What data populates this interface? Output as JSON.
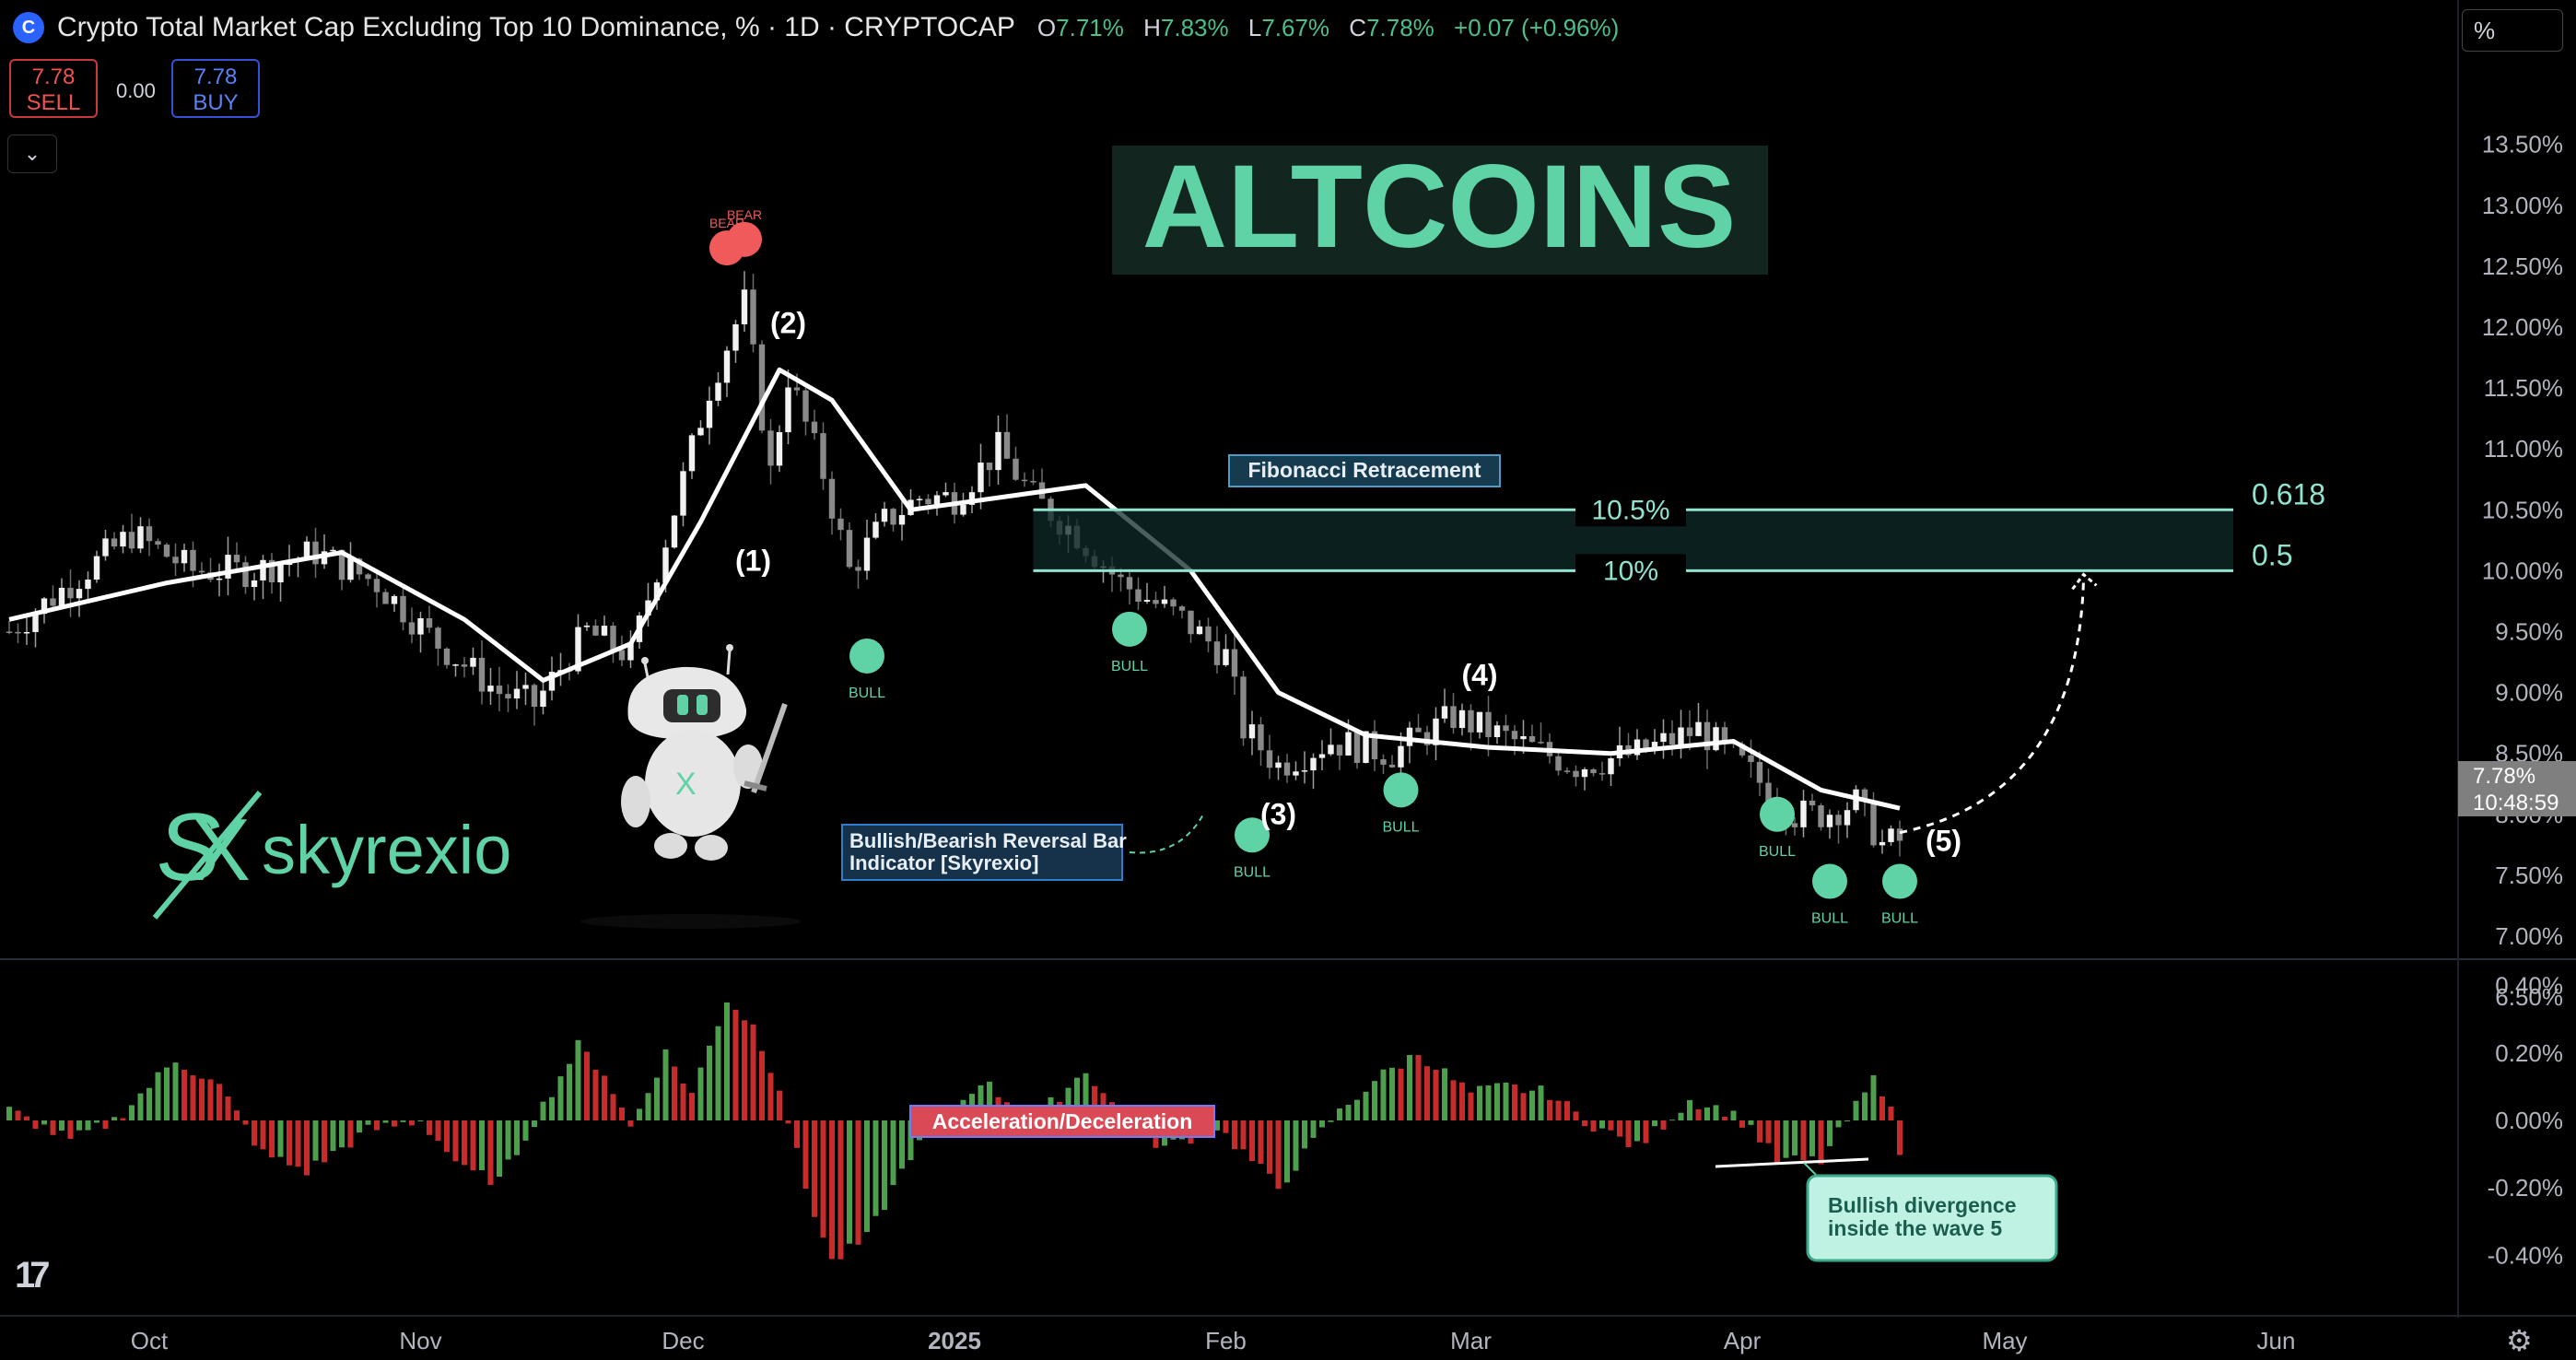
{
  "header": {
    "logo_glyph": "C",
    "title": "Crypto Total Market Cap Excluding Top 10 Dominance, % · 1D · CRYPTOCAP",
    "ohlc": [
      {
        "label": "O",
        "value": "7.71%"
      },
      {
        "label": "H",
        "value": "7.83%"
      },
      {
        "label": "L",
        "value": "7.67%"
      },
      {
        "label": "C",
        "value": "7.78%"
      }
    ],
    "change": "+0.07 (+0.96%)"
  },
  "trade": {
    "sell_price": "7.78",
    "sell_label": "SELL",
    "spread": "0.00",
    "buy_price": "7.78",
    "buy_label": "BUY"
  },
  "scale_button": "%",
  "collapse_icon": "chevron-down-icon",
  "tradingview_logo": "17",
  "settings_icon": "gear-icon",
  "colors": {
    "up": "#4d9e4d",
    "down": "#c72c2c",
    "price_line": "#ffffff",
    "accent": "#5fd3a5",
    "bull_dot": "#5fd3a5",
    "bear_dot": "#f05a5a",
    "fib_line": "#8fe3cf"
  },
  "annotations": {
    "altcoins_title": "ALTCOINS",
    "brand": "skyrexio",
    "wave_labels": [
      "(1)",
      "(2)",
      "(3)",
      "(4)",
      "(5)"
    ],
    "bull": "BULL",
    "bear": "BEAR",
    "fib_title": "Fibonacci Retracement",
    "fib_upper_pct": "10.5%",
    "fib_lower_pct": "10%",
    "fib_upper_ratio": "0.618",
    "fib_lower_ratio": "0.5",
    "indicator_note": "Bullish/Bearish Reversal Bar Indicator [Skyrexio]",
    "accel_label": "Acceleration/Deceleration",
    "divergence_note": "Bullish divergence inside the wave 5",
    "last_price": "7.78%",
    "countdown": "10:48:59"
  },
  "chart_data": [
    {
      "type": "candlestick",
      "title": "Crypto Total Market Cap Excluding Top 10 Dominance, %",
      "x_tick_labels": [
        "Oct",
        "Nov",
        "Dec",
        "2025",
        "Feb",
        "Mar",
        "Apr",
        "May",
        "Jun"
      ],
      "y_tick_labels": [
        "13.50%",
        "13.00%",
        "12.50%",
        "12.00%",
        "11.50%",
        "11.00%",
        "10.50%",
        "10.00%",
        "9.50%",
        "9.00%",
        "8.50%",
        "8.00%",
        "7.50%",
        "7.00%",
        "6.50%"
      ],
      "ylim": [
        6.4,
        13.6
      ],
      "close_anchors": [
        {
          "date": "2024-09-15",
          "value": 9.5
        },
        {
          "date": "2024-09-22",
          "value": 9.9
        },
        {
          "date": "2024-09-29",
          "value": 10.3
        },
        {
          "date": "2024-10-06",
          "value": 10.0
        },
        {
          "date": "2024-10-13",
          "value": 10.0
        },
        {
          "date": "2024-10-20",
          "value": 10.15
        },
        {
          "date": "2024-10-27",
          "value": 9.9
        },
        {
          "date": "2024-11-03",
          "value": 9.4
        },
        {
          "date": "2024-11-10",
          "value": 9.0
        },
        {
          "date": "2024-11-14",
          "value": 8.9
        },
        {
          "date": "2024-11-20",
          "value": 9.5
        },
        {
          "date": "2024-11-25",
          "value": 9.3
        },
        {
          "date": "2024-11-30",
          "value": 10.5
        },
        {
          "date": "2024-12-04",
          "value": 11.5
        },
        {
          "date": "2024-12-08",
          "value": 12.2
        },
        {
          "date": "2024-12-11",
          "value": 10.8
        },
        {
          "date": "2024-12-13",
          "value": 11.6
        },
        {
          "date": "2024-12-17",
          "value": 10.8
        },
        {
          "date": "2024-12-20",
          "value": 10.0
        },
        {
          "date": "2024-12-24",
          "value": 10.4
        },
        {
          "date": "2024-12-28",
          "value": 10.6
        },
        {
          "date": "2025-01-01",
          "value": 10.6
        },
        {
          "date": "2025-01-06",
          "value": 11.0
        },
        {
          "date": "2025-01-10",
          "value": 10.6
        },
        {
          "date": "2025-01-15",
          "value": 10.3
        },
        {
          "date": "2025-01-20",
          "value": 9.9
        },
        {
          "date": "2025-01-27",
          "value": 9.6
        },
        {
          "date": "2025-02-01",
          "value": 9.3
        },
        {
          "date": "2025-02-03",
          "value": 8.7
        },
        {
          "date": "2025-02-07",
          "value": 8.4
        },
        {
          "date": "2025-02-13",
          "value": 8.6
        },
        {
          "date": "2025-02-20",
          "value": 8.5
        },
        {
          "date": "2025-02-27",
          "value": 8.8
        },
        {
          "date": "2025-03-06",
          "value": 8.6
        },
        {
          "date": "2025-03-13",
          "value": 8.4
        },
        {
          "date": "2025-03-20",
          "value": 8.5
        },
        {
          "date": "2025-03-27",
          "value": 8.7
        },
        {
          "date": "2025-04-01",
          "value": 8.4
        },
        {
          "date": "2025-04-07",
          "value": 8.0
        },
        {
          "date": "2025-04-10",
          "value": 8.0
        },
        {
          "date": "2025-04-14",
          "value": 8.1
        },
        {
          "date": "2025-04-17",
          "value": 7.75
        },
        {
          "date": "2025-04-19",
          "value": 7.78
        }
      ],
      "moving_average": [
        {
          "date": "2024-09-15",
          "value": 9.6
        },
        {
          "date": "2024-10-03",
          "value": 9.9
        },
        {
          "date": "2024-10-23",
          "value": 10.15
        },
        {
          "date": "2024-11-06",
          "value": 9.6
        },
        {
          "date": "2024-11-15",
          "value": 9.1
        },
        {
          "date": "2024-11-25",
          "value": 9.4
        },
        {
          "date": "2024-12-03",
          "value": 10.4
        },
        {
          "date": "2024-12-12",
          "value": 11.65
        },
        {
          "date": "2024-12-18",
          "value": 11.4
        },
        {
          "date": "2024-12-27",
          "value": 10.5
        },
        {
          "date": "2025-01-06",
          "value": 10.6
        },
        {
          "date": "2025-01-16",
          "value": 10.7
        },
        {
          "date": "2025-01-28",
          "value": 10.0
        },
        {
          "date": "2025-02-07",
          "value": 9.0
        },
        {
          "date": "2025-02-17",
          "value": 8.65
        },
        {
          "date": "2025-03-03",
          "value": 8.55
        },
        {
          "date": "2025-03-17",
          "value": 8.5
        },
        {
          "date": "2025-03-31",
          "value": 8.6
        },
        {
          "date": "2025-04-10",
          "value": 8.2
        },
        {
          "date": "2025-04-19",
          "value": 8.05
        }
      ],
      "fibonacci": [
        {
          "ratio": "0.618",
          "value": 10.5,
          "label": "10.5%"
        },
        {
          "ratio": "0.5",
          "value": 10.0,
          "label": "10%"
        }
      ],
      "signals": [
        {
          "type": "BEAR",
          "date": "2024-12-06",
          "value": 12.65
        },
        {
          "type": "BEAR",
          "date": "2024-12-08",
          "value": 12.72
        },
        {
          "type": "BULL",
          "date": "2024-12-22",
          "value": 9.3
        },
        {
          "type": "BULL",
          "date": "2025-01-21",
          "value": 9.52
        },
        {
          "type": "BULL",
          "date": "2025-02-04",
          "value": 7.83
        },
        {
          "type": "BULL",
          "date": "2025-02-21",
          "value": 8.2
        },
        {
          "type": "BULL",
          "date": "2025-04-05",
          "value": 8.0
        },
        {
          "type": "BULL",
          "date": "2025-04-11",
          "value": 7.45
        },
        {
          "type": "BULL",
          "date": "2025-04-19",
          "value": 7.45
        }
      ],
      "waves": [
        {
          "label": "(1)",
          "date": "2024-12-09",
          "value": 10.0
        },
        {
          "label": "(2)",
          "date": "2024-12-13",
          "value": 11.95
        },
        {
          "label": "(3)",
          "date": "2025-02-07",
          "value": 7.92
        },
        {
          "label": "(4)",
          "date": "2025-03-02",
          "value": 9.06
        },
        {
          "label": "(5)",
          "date": "2025-04-24",
          "value": 7.7
        }
      ],
      "projection": [
        {
          "date": "2025-04-19",
          "value": 7.85
        },
        {
          "date": "2025-05-05",
          "value": 8.6
        },
        {
          "date": "2025-05-10",
          "value": 10.0
        }
      ]
    },
    {
      "type": "bar",
      "title": "Acceleration/Deceleration",
      "y_tick_labels": [
        "0.40%",
        "0.20%",
        "0.00%",
        "-0.20%",
        "-0.40%"
      ],
      "ylim": [
        -0.48,
        0.46
      ],
      "anchors": [
        {
          "date": "2024-09-15",
          "value": 0.03
        },
        {
          "date": "2024-09-22",
          "value": -0.06
        },
        {
          "date": "2024-09-27",
          "value": 0.0
        },
        {
          "date": "2024-10-04",
          "value": 0.18
        },
        {
          "date": "2024-10-09",
          "value": 0.1
        },
        {
          "date": "2024-10-14",
          "value": -0.1
        },
        {
          "date": "2024-10-19",
          "value": -0.15
        },
        {
          "date": "2024-10-26",
          "value": -0.03
        },
        {
          "date": "2024-11-01",
          "value": 0.0
        },
        {
          "date": "2024-11-06",
          "value": -0.15
        },
        {
          "date": "2024-11-10",
          "value": -0.18
        },
        {
          "date": "2024-11-14",
          "value": 0.0
        },
        {
          "date": "2024-11-19",
          "value": 0.22
        },
        {
          "date": "2024-11-22",
          "value": 0.14
        },
        {
          "date": "2024-11-25",
          "value": -0.02
        },
        {
          "date": "2024-11-29",
          "value": 0.2
        },
        {
          "date": "2024-12-02",
          "value": 0.08
        },
        {
          "date": "2024-12-06",
          "value": 0.36
        },
        {
          "date": "2024-12-09",
          "value": 0.28
        },
        {
          "date": "2024-12-12",
          "value": 0.1
        },
        {
          "date": "2024-12-15",
          "value": -0.2
        },
        {
          "date": "2024-12-18",
          "value": -0.42
        },
        {
          "date": "2024-12-22",
          "value": -0.35
        },
        {
          "date": "2024-12-27",
          "value": -0.1
        },
        {
          "date": "2025-01-01",
          "value": 0.03
        },
        {
          "date": "2025-01-04",
          "value": 0.12
        },
        {
          "date": "2025-01-10",
          "value": 0.0
        },
        {
          "date": "2025-01-16",
          "value": 0.15
        },
        {
          "date": "2025-01-21",
          "value": -0.02
        },
        {
          "date": "2025-01-25",
          "value": -0.08
        },
        {
          "date": "2025-01-31",
          "value": -0.02
        },
        {
          "date": "2025-02-04",
          "value": -0.12
        },
        {
          "date": "2025-02-07",
          "value": -0.2
        },
        {
          "date": "2025-02-13",
          "value": 0.0
        },
        {
          "date": "2025-02-18",
          "value": 0.12
        },
        {
          "date": "2025-02-23",
          "value": 0.2
        },
        {
          "date": "2025-03-01",
          "value": 0.08
        },
        {
          "date": "2025-03-05",
          "value": 0.1
        },
        {
          "date": "2025-03-10",
          "value": 0.08
        },
        {
          "date": "2025-03-14",
          "value": 0.0
        },
        {
          "date": "2025-03-20",
          "value": -0.08
        },
        {
          "date": "2025-03-26",
          "value": 0.06
        },
        {
          "date": "2025-03-30",
          "value": 0.03
        },
        {
          "date": "2025-04-02",
          "value": -0.02
        },
        {
          "date": "2025-04-05",
          "value": -0.12
        },
        {
          "date": "2025-04-10",
          "value": -0.12
        },
        {
          "date": "2025-04-13",
          "value": 0.0
        },
        {
          "date": "2025-04-16",
          "value": 0.12
        },
        {
          "date": "2025-04-18",
          "value": 0.06
        },
        {
          "date": "2025-04-19",
          "value": -0.12
        }
      ]
    }
  ]
}
